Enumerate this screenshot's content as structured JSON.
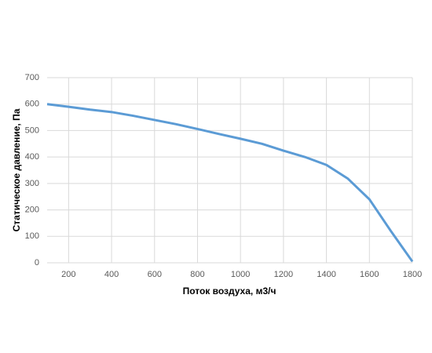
{
  "chart_data": {
    "type": "line",
    "x_label": "Поток воздуха, м3/ч",
    "y_label": "Статическое давление, Па",
    "x": [
      100,
      200,
      300,
      400,
      500,
      600,
      700,
      800,
      900,
      1000,
      1100,
      1200,
      1300,
      1400,
      1500,
      1600,
      1700,
      1800
    ],
    "values": [
      600,
      590,
      579,
      570,
      556,
      540,
      524,
      506,
      487,
      469,
      450,
      424,
      400,
      370,
      318,
      240,
      120,
      5
    ],
    "color": "#5b9bd5",
    "xlim": [
      100,
      1800
    ],
    "xticks": [
      200,
      400,
      600,
      800,
      1000,
      1200,
      1400,
      1600,
      1800
    ],
    "ylim": [
      0,
      700
    ],
    "yticks": [
      0,
      100,
      200,
      300,
      400,
      500,
      600,
      700
    ],
    "grid": true
  }
}
